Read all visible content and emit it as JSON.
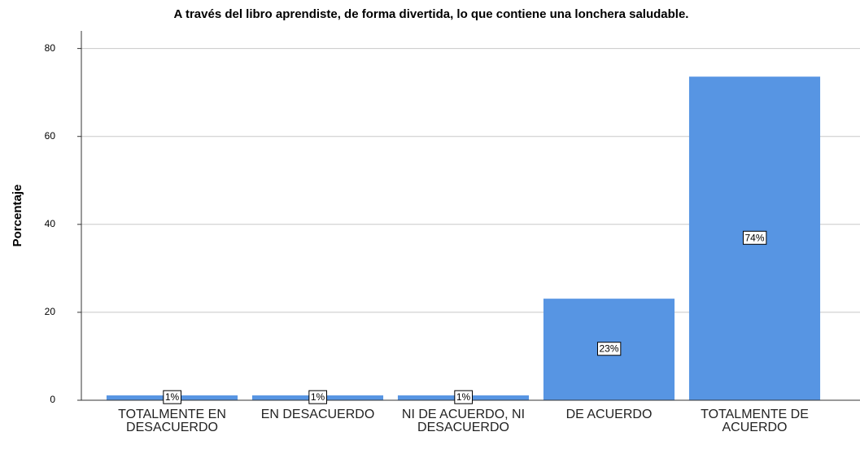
{
  "chart_data": {
    "type": "bar",
    "title": "A través del libro aprendiste, de forma divertida, lo que contiene una lonchera saludable.",
    "y_label": "Porcentaje",
    "categories": [
      "TOTALMENTE EN DESACUERDO",
      "EN DESACUERDO",
      "NI DE ACUERDO, NI DESACUERDO",
      "DE ACUERDO",
      "TOTALMENTE DE ACUERDO"
    ],
    "values": [
      1.1,
      1.1,
      1.1,
      23.1,
      73.6
    ],
    "value_labels": [
      "1%",
      "1%",
      "1%",
      "23%",
      "74%"
    ],
    "color": "#5795e3",
    "ylim": [
      0,
      84
    ],
    "yticks": [
      0,
      20,
      40,
      60,
      80
    ],
    "grid": true
  }
}
